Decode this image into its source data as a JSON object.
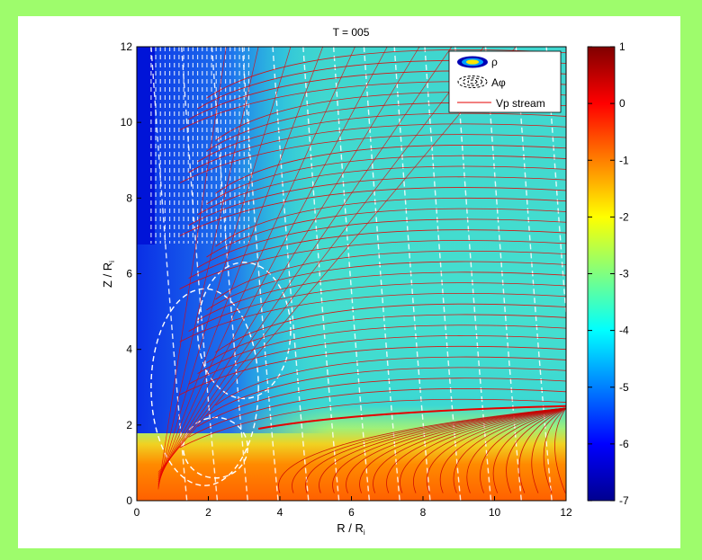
{
  "chart_data": {
    "type": "heatmap",
    "title": "T = 005",
    "xlabel": "R / R",
    "xlabel_sub": "i",
    "ylabel": "Z / R",
    "ylabel_sub": "i",
    "xlim": [
      0,
      12
    ],
    "ylim": [
      0,
      12
    ],
    "xticks": [
      0,
      2,
      4,
      6,
      8,
      10,
      12
    ],
    "yticks": [
      0,
      2,
      4,
      6,
      8,
      10,
      12
    ],
    "colorbar": {
      "min": -7,
      "max": 1,
      "ticks": [
        1,
        0,
        -1,
        -2,
        -3,
        -4,
        -5,
        -6,
        -7
      ],
      "colormap": [
        "#00008f",
        "#0000ff",
        "#00ffff",
        "#ffff00",
        "#ff0000",
        "#800000"
      ]
    },
    "legend": {
      "placement": "top-right",
      "entries": [
        {
          "label": "ρ",
          "style": "filled-contour"
        },
        {
          "label": "Aφ",
          "style": "black-dashed-contour"
        },
        {
          "label": "Vp stream",
          "style": "red-line"
        }
      ]
    },
    "series_colors": {
      "density_contours": "jet colormap",
      "field_lines": "#ffffff",
      "streamlines": "#e60000"
    }
  }
}
